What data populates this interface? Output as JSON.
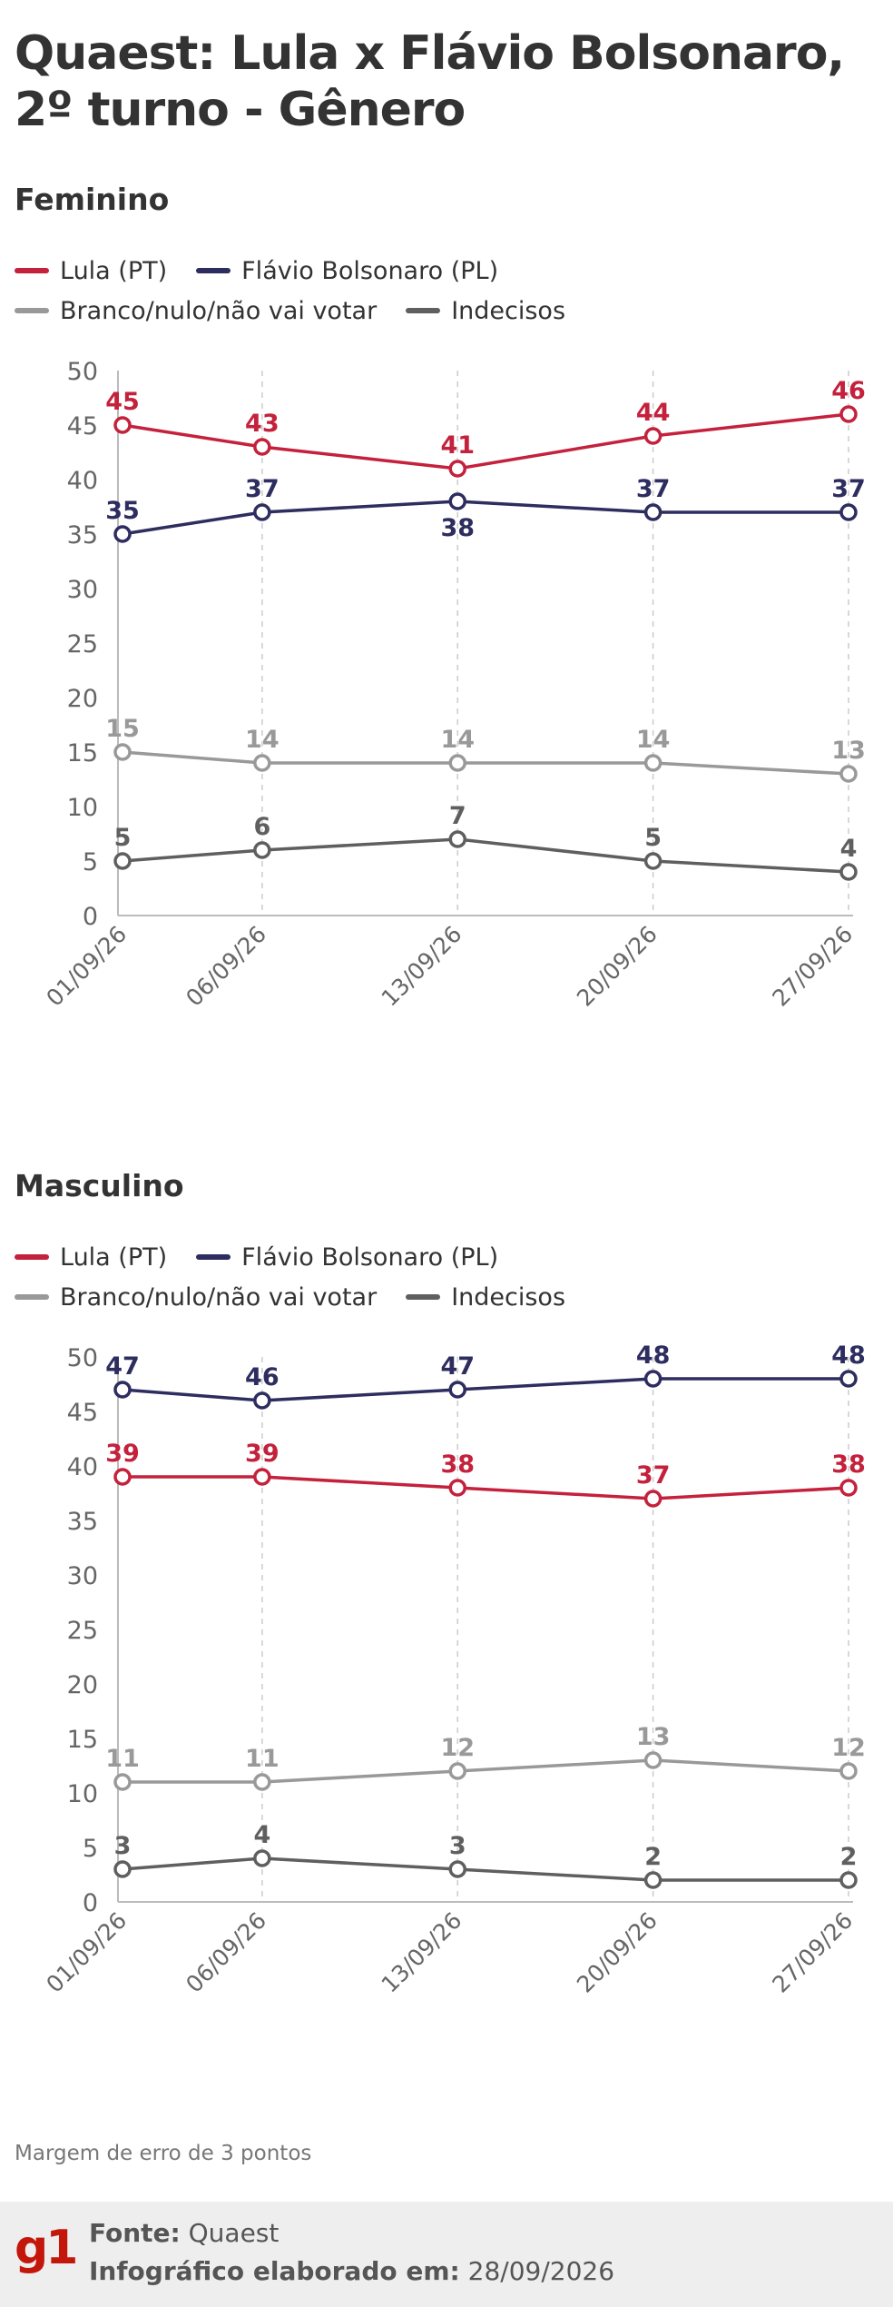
{
  "title": "Quaest: Lula x Flávio Bolsonaro, 2º turno - Gênero",
  "note": "Margem de erro de 3 pontos",
  "footer": {
    "logo": "g1",
    "source_label": "Fonte:",
    "source_value": "Quaest",
    "made_label": "Infográfico elaborado em:",
    "made_value": "28/09/2026"
  },
  "legend": [
    {
      "name": "Lula (PT)",
      "color": "#c4213c"
    },
    {
      "name": "Flávio Bolsonaro (PL)",
      "color": "#2d2d5f"
    },
    {
      "name": "Branco/nulo/não vai votar",
      "color": "#999999"
    },
    {
      "name": "Indecisos",
      "color": "#5f5f5f"
    }
  ],
  "chart_data": [
    {
      "type": "line",
      "title": "Feminino",
      "x": [
        "01/09/26",
        "06/09/26",
        "13/09/26",
        "20/09/26",
        "27/09/26"
      ],
      "ylim": [
        0,
        50
      ],
      "yticks": [
        0,
        5,
        10,
        15,
        20,
        25,
        30,
        35,
        40,
        45,
        50
      ],
      "series": [
        {
          "name": "Lula (PT)",
          "color": "#c4213c",
          "values": [
            45,
            43,
            41,
            44,
            46
          ]
        },
        {
          "name": "Flávio Bolsonaro (PL)",
          "color": "#2d2d5f",
          "values": [
            35,
            37,
            38,
            37,
            37
          ]
        },
        {
          "name": "Branco/nulo/não vai votar",
          "color": "#999999",
          "values": [
            15,
            14,
            14,
            14,
            13
          ]
        },
        {
          "name": "Indecisos",
          "color": "#5f5f5f",
          "values": [
            5,
            6,
            7,
            5,
            4
          ]
        }
      ]
    },
    {
      "type": "line",
      "title": "Masculino",
      "x": [
        "01/09/26",
        "06/09/26",
        "13/09/26",
        "20/09/26",
        "27/09/26"
      ],
      "ylim": [
        0,
        50
      ],
      "yticks": [
        0,
        5,
        10,
        15,
        20,
        25,
        30,
        35,
        40,
        45,
        50
      ],
      "series": [
        {
          "name": "Lula (PT)",
          "color": "#c4213c",
          "values": [
            39,
            39,
            38,
            37,
            38
          ]
        },
        {
          "name": "Flávio Bolsonaro (PL)",
          "color": "#2d2d5f",
          "values": [
            47,
            46,
            47,
            48,
            48
          ]
        },
        {
          "name": "Branco/nulo/não vai votar",
          "color": "#999999",
          "values": [
            11,
            11,
            12,
            13,
            12
          ]
        },
        {
          "name": "Indecisos",
          "color": "#5f5f5f",
          "values": [
            3,
            4,
            3,
            2,
            2
          ]
        }
      ]
    }
  ]
}
